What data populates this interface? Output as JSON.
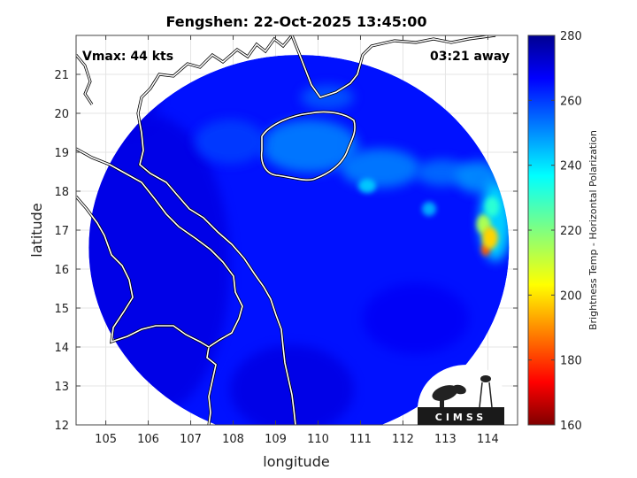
{
  "chart_data": {
    "type": "heatmap",
    "title": "Fengshen: 22-Oct-2025 13:45:00",
    "xlabel": "longitude",
    "ylabel": "latitude",
    "xlim": [
      104.3,
      114.7
    ],
    "ylim": [
      12,
      22
    ],
    "xticks": [
      105,
      106,
      107,
      108,
      109,
      110,
      111,
      112,
      113,
      114
    ],
    "yticks": [
      12,
      13,
      14,
      15,
      16,
      17,
      18,
      19,
      20,
      21
    ],
    "grid": true,
    "annotations": {
      "top_left": "Vmax: 44 kts",
      "top_right": "03:21 away"
    },
    "colorbar": {
      "label": "Brightness Temp - Horizontal Polarization",
      "range": [
        160,
        280
      ],
      "ticks": [
        160,
        180,
        200,
        220,
        240,
        260,
        280
      ],
      "colormap": "jet"
    },
    "swath": {
      "center": [
        109.55,
        16.55
      ],
      "radius_deg": 4.95
    },
    "convective_cells": [
      {
        "lon": 113.9,
        "lat": 17.15,
        "value": 215
      },
      {
        "lon": 113.95,
        "lat": 16.5,
        "value": 185
      },
      {
        "lon": 114.05,
        "lat": 16.8,
        "value": 200
      },
      {
        "lon": 114.1,
        "lat": 17.6,
        "value": 230
      }
    ],
    "field_values": {
      "background": 263,
      "warm_region": 268,
      "cool_patches": 250
    },
    "logo": "CIMSS"
  }
}
